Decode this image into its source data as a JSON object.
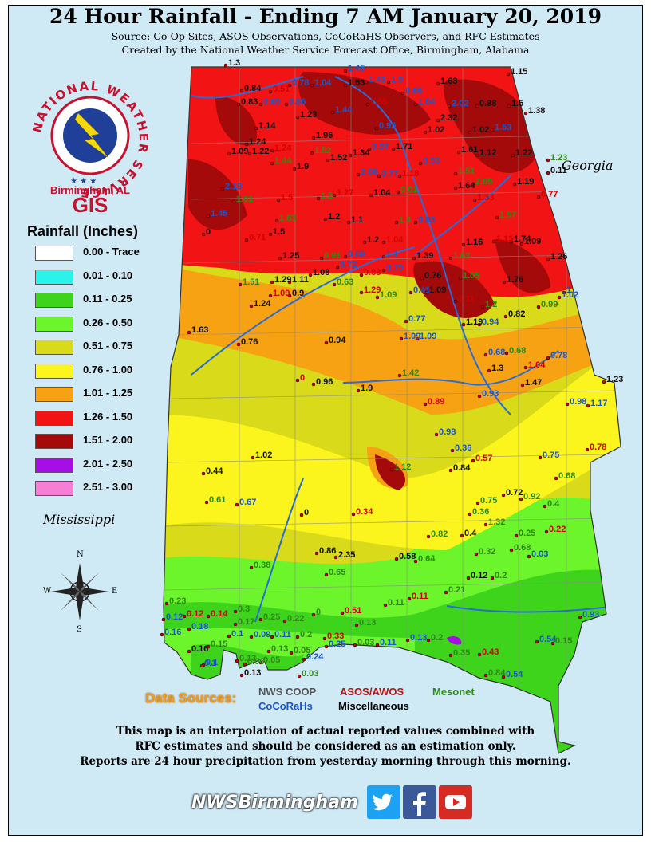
{
  "title": "24 Hour Rainfall - Ending 7 AM January 20, 2019",
  "subtitle1": "Source: Co-Op Sites, ASOS Observations, CoCoRaHS Observers, and RFC Estimates",
  "subtitle2": "Created by the National Weather Service Forecast Office, Birmingham, Alabama",
  "logo": {
    "ring_text": "NATIONAL WEATHER SERVICE",
    "office": "Birmingham, AL",
    "gis": "GIS"
  },
  "legend": {
    "title": "Rainfall (Inches)",
    "items": [
      {
        "label": "0.00 - Trace",
        "color": "#ffffff"
      },
      {
        "label": "0.01 - 0.10",
        "color": "#29f3ea"
      },
      {
        "label": "0.11 - 0.25",
        "color": "#3ed41c"
      },
      {
        "label": "0.26 - 0.50",
        "color": "#6cf52a"
      },
      {
        "label": "0.51 - 0.75",
        "color": "#d8da1a"
      },
      {
        "label": "0.76 - 1.00",
        "color": "#fbf51d"
      },
      {
        "label": "1.01 - 1.25",
        "color": "#f7a212"
      },
      {
        "label": "1.26 - 1.50",
        "color": "#f21414"
      },
      {
        "label": "1.51 - 2.00",
        "color": "#a40a0a"
      },
      {
        "label": "2.01 - 2.50",
        "color": "#a50ee6"
      },
      {
        "label": "2.51 - 3.00",
        "color": "#f77ed5"
      }
    ]
  },
  "labels": {
    "mississippi": "Mississippi",
    "georgia": "Georgia",
    "compass": {
      "n": "N",
      "s": "S",
      "e": "E",
      "w": "W"
    }
  },
  "sources": {
    "title": "Data Sources:",
    "nws_coop": "NWS COOP",
    "asos_awos": "ASOS/AWOS",
    "mesonet": "Mesonet",
    "cocorahs": "CoCoRaHs",
    "misc": "Miscellaneous"
  },
  "disclaimer": [
    "This map is an interpolation of actual reported values combined with",
    "RFC estimates and should be considered as an estimation only.",
    "Reports are 24 hour precipitation from yesterday morning through this morning."
  ],
  "footer": {
    "handle": "NWSBirmingham",
    "icons": [
      "twitter-icon",
      "facebook-icon",
      "youtube-icon"
    ]
  },
  "colors": {
    "water": "#cfe9f5",
    "coop": "#111111",
    "cocorahs": "#1a56c9",
    "asos": "#d40000",
    "mesonet": "#2d8a13"
  },
  "obs": [
    {
      "v": "1.3",
      "t": "coop"
    },
    {
      "v": "1.45",
      "t": "coco"
    },
    {
      "v": "1.15",
      "t": "coop"
    },
    {
      "v": "0.84",
      "t": "coop"
    },
    {
      "v": "0.51",
      "t": "asos"
    },
    {
      "v": "0.78",
      "t": "coco"
    },
    {
      "v": "1.04",
      "t": "coco"
    },
    {
      "v": "1.53",
      "t": "coop"
    },
    {
      "v": "1.43",
      "t": "coco"
    },
    {
      "v": "1.9",
      "t": "coco"
    },
    {
      "v": "1.63",
      "t": "coop"
    },
    {
      "v": "0.83",
      "t": "coop"
    },
    {
      "v": "0.69",
      "t": "coco"
    },
    {
      "v": "0.86",
      "t": "coco"
    },
    {
      "v": "1.23",
      "t": "coop"
    },
    {
      "v": "1.44",
      "t": "coco"
    },
    {
      "v": "1.55",
      "t": "asos"
    },
    {
      "v": "0.66",
      "t": "coco"
    },
    {
      "v": "1.04",
      "t": "coco"
    },
    {
      "v": "2.02",
      "t": "coco"
    },
    {
      "v": "0.88",
      "t": "coop"
    },
    {
      "v": "1.5",
      "t": "coop"
    },
    {
      "v": "1.38",
      "t": "coop"
    },
    {
      "v": "1.14",
      "t": "coop"
    },
    {
      "v": "0.95",
      "t": "coco"
    },
    {
      "v": "1.02",
      "t": "coop"
    },
    {
      "v": "2.32",
      "t": "coop"
    },
    {
      "v": "1.02",
      "t": "coop"
    },
    {
      "v": "1.53",
      "t": "coco"
    },
    {
      "v": "1.96",
      "t": "coop"
    },
    {
      "v": "1.24",
      "t": "coop"
    },
    {
      "v": "1.22",
      "t": "coop"
    },
    {
      "v": "1.09",
      "t": "coop"
    },
    {
      "v": "1.24",
      "t": "asos"
    },
    {
      "v": "1.52",
      "t": "meso"
    },
    {
      "v": "1.34",
      "t": "coop"
    },
    {
      "v": "0.97",
      "t": "coco"
    },
    {
      "v": "1.71",
      "t": "coop"
    },
    {
      "v": "1.61",
      "t": "coop"
    },
    {
      "v": "1.12",
      "t": "coop"
    },
    {
      "v": "1.22",
      "t": "coop"
    },
    {
      "v": "1.23",
      "t": "meso"
    },
    {
      "v": "1.44",
      "t": "meso"
    },
    {
      "v": "1.9",
      "t": "coop"
    },
    {
      "v": "1.52",
      "t": "coop"
    },
    {
      "v": "2.08",
      "t": "coco"
    },
    {
      "v": "0.77",
      "t": "coco"
    },
    {
      "v": "1.18",
      "t": "asos"
    },
    {
      "v": "0.93",
      "t": "coco"
    },
    {
      "v": "1.51",
      "t": "meso"
    },
    {
      "v": "0.11",
      "t": "coop"
    },
    {
      "v": "2.19",
      "t": "coco"
    },
    {
      "v": "1.01",
      "t": "meso"
    },
    {
      "v": "1.5",
      "t": "asos"
    },
    {
      "v": "1.2",
      "t": "meso"
    },
    {
      "v": "1.27",
      "t": "asos"
    },
    {
      "v": "1.04",
      "t": "coop"
    },
    {
      "v": "0.01",
      "t": "meso"
    },
    {
      "v": "1.64",
      "t": "coop"
    },
    {
      "v": "2.05",
      "t": "meso"
    },
    {
      "v": "1.19",
      "t": "coop"
    },
    {
      "v": "0.77",
      "t": "asos"
    },
    {
      "v": "1.45",
      "t": "coco"
    },
    {
      "v": "1.63",
      "t": "meso"
    },
    {
      "v": "1.2",
      "t": "coop"
    },
    {
      "v": "1.1",
      "t": "coop"
    },
    {
      "v": "1.4",
      "t": "meso"
    },
    {
      "v": "0.83",
      "t": "coco"
    },
    {
      "v": "1.33",
      "t": "asos"
    },
    {
      "v": "1.57",
      "t": "meso"
    },
    {
      "v": "0",
      "t": "coop"
    },
    {
      "v": "0.71",
      "t": "asos"
    },
    {
      "v": "1.5",
      "t": "coop"
    },
    {
      "v": "1.2",
      "t": "coop"
    },
    {
      "v": "1.04",
      "t": "asos"
    },
    {
      "v": "1.16",
      "t": "coop"
    },
    {
      "v": "1.15",
      "t": "asos"
    },
    {
      "v": "1.74",
      "t": "coop"
    },
    {
      "v": "1.09",
      "t": "coop"
    },
    {
      "v": "1.25",
      "t": "coop"
    },
    {
      "v": "0.91",
      "t": "meso"
    },
    {
      "v": "0.69",
      "t": "coco"
    },
    {
      "v": "1.1",
      "t": "coco"
    },
    {
      "v": "1.39",
      "t": "coop"
    },
    {
      "v": "1.02",
      "t": "meso"
    },
    {
      "v": "1.26",
      "t": "coop"
    },
    {
      "v": "0.72",
      "t": "coco"
    },
    {
      "v": "0.79",
      "t": "coco"
    },
    {
      "v": "1.08",
      "t": "coop"
    },
    {
      "v": "0.88",
      "t": "asos"
    },
    {
      "v": "0.76",
      "t": "coop"
    },
    {
      "v": "1.05",
      "t": "meso"
    },
    {
      "v": "1.29",
      "t": "coop"
    },
    {
      "v": "1.11",
      "t": "coop"
    },
    {
      "v": "0.63",
      "t": "meso"
    },
    {
      "v": "1.51",
      "t": "meso"
    },
    {
      "v": "1.09",
      "t": "asos"
    },
    {
      "v": "0.9",
      "t": "coop"
    },
    {
      "v": "1.29",
      "t": "asos"
    },
    {
      "v": "1.09",
      "t": "meso"
    },
    {
      "v": "0.41",
      "t": "coco"
    },
    {
      "v": "1.09",
      "t": "coop"
    },
    {
      "v": "1.76",
      "t": "coop"
    },
    {
      "v": "1",
      "t": "coco"
    },
    {
      "v": "1.24",
      "t": "coop"
    },
    {
      "v": "1.11",
      "t": "asos"
    },
    {
      "v": "1.2",
      "t": "meso"
    },
    {
      "v": "0.99",
      "t": "meso"
    },
    {
      "v": "1.02",
      "t": "coco"
    },
    {
      "v": "0.77",
      "t": "coco"
    },
    {
      "v": "1.19",
      "t": "coop"
    },
    {
      "v": "0.94",
      "t": "coco"
    },
    {
      "v": "0.82",
      "t": "coop"
    },
    {
      "v": "1.63",
      "t": "coop"
    },
    {
      "v": "0.76",
      "t": "coop"
    },
    {
      "v": "0.94",
      "t": "coop"
    },
    {
      "v": "1.09",
      "t": "coco"
    },
    {
      "v": "1.09",
      "t": "coco"
    },
    {
      "v": "0.68",
      "t": "coco"
    },
    {
      "v": "0.68",
      "t": "meso"
    },
    {
      "v": "0.78",
      "t": "coco"
    },
    {
      "v": "1.3",
      "t": "coop"
    },
    {
      "v": "1.04",
      "t": "asos"
    },
    {
      "v": "1.42",
      "t": "meso"
    },
    {
      "v": "1.47",
      "t": "coop"
    },
    {
      "v": "0.93",
      "t": "coco"
    },
    {
      "v": "1.23",
      "t": "coop"
    },
    {
      "v": "0",
      "t": "asos"
    },
    {
      "v": "0.96",
      "t": "coop"
    },
    {
      "v": "1.9",
      "t": "coop"
    },
    {
      "v": "0.89",
      "t": "asos"
    },
    {
      "v": "0.98",
      "t": "coco"
    },
    {
      "v": "1.17",
      "t": "coco"
    },
    {
      "v": "0.98",
      "t": "coco"
    },
    {
      "v": "0.36",
      "t": "coco"
    },
    {
      "v": "0.57",
      "t": "asos"
    },
    {
      "v": "0.78",
      "t": "asos"
    },
    {
      "v": "1.02",
      "t": "coop"
    },
    {
      "v": "0.84",
      "t": "coop"
    },
    {
      "v": "0.75",
      "t": "coco"
    },
    {
      "v": "1.12",
      "t": "meso"
    },
    {
      "v": "0.44",
      "t": "coop"
    },
    {
      "v": "0.68",
      "t": "meso"
    },
    {
      "v": "0.61",
      "t": "meso"
    },
    {
      "v": "0.67",
      "t": "coco"
    },
    {
      "v": "0.34",
      "t": "asos"
    },
    {
      "v": "0.72",
      "t": "coop"
    },
    {
      "v": "0.75",
      "t": "meso"
    },
    {
      "v": "0.92",
      "t": "meso"
    },
    {
      "v": "0.4",
      "t": "meso"
    },
    {
      "v": "0",
      "t": "coop"
    },
    {
      "v": "0.36",
      "t": "meso"
    },
    {
      "v": "1.32",
      "t": "meso"
    },
    {
      "v": "0.22",
      "t": "asos"
    },
    {
      "v": "0.82",
      "t": "meso"
    },
    {
      "v": "0.4",
      "t": "coop"
    },
    {
      "v": "0.25",
      "t": "meso"
    },
    {
      "v": "0.32",
      "t": "meso"
    },
    {
      "v": "0.68",
      "t": "meso"
    },
    {
      "v": "0.86",
      "t": "coop"
    },
    {
      "v": "2.35",
      "t": "coop"
    },
    {
      "v": "0.58",
      "t": "coop"
    },
    {
      "v": "0.64",
      "t": "meso"
    },
    {
      "v": "0.03",
      "t": "coco"
    },
    {
      "v": "0.38",
      "t": "meso"
    },
    {
      "v": "0.65",
      "t": "meso"
    },
    {
      "v": "0.12",
      "t": "coop"
    },
    {
      "v": "0.2",
      "t": "meso"
    },
    {
      "v": "0.21",
      "t": "meso"
    },
    {
      "v": "0.23",
      "t": "meso"
    },
    {
      "v": "0.11",
      "t": "asos"
    },
    {
      "v": "0.11",
      "t": "meso"
    },
    {
      "v": "0.93",
      "t": "coco"
    },
    {
      "v": "0.12",
      "t": "coco"
    },
    {
      "v": "0.12",
      "t": "asos"
    },
    {
      "v": "0.14",
      "t": "asos"
    },
    {
      "v": "0.3",
      "t": "meso"
    },
    {
      "v": "0.25",
      "t": "meso"
    },
    {
      "v": "0.22",
      "t": "meso"
    },
    {
      "v": "0",
      "t": "meso"
    },
    {
      "v": "0.51",
      "t": "asos"
    },
    {
      "v": "0.13",
      "t": "meso"
    },
    {
      "v": "0.16",
      "t": "coco"
    },
    {
      "v": "0.18",
      "t": "coco"
    },
    {
      "v": "0.17",
      "t": "meso"
    },
    {
      "v": "0.15",
      "t": "meso"
    },
    {
      "v": "0.1",
      "t": "coco"
    },
    {
      "v": "0.33",
      "t": "asos"
    },
    {
      "v": "0.1",
      "t": "coco"
    },
    {
      "v": "0.09",
      "t": "coco"
    },
    {
      "v": "0.11",
      "t": "coco"
    },
    {
      "v": "0.2",
      "t": "meso"
    },
    {
      "v": "0.54",
      "t": "coco"
    },
    {
      "v": "0.15",
      "t": "meso"
    },
    {
      "v": "0.13",
      "t": "meso"
    },
    {
      "v": "0.05",
      "t": "meso"
    },
    {
      "v": "0.24",
      "t": "coco"
    },
    {
      "v": "0.25",
      "t": "coco"
    },
    {
      "v": "0.03",
      "t": "meso"
    },
    {
      "v": "0.11",
      "t": "coco"
    },
    {
      "v": "0.13",
      "t": "coco"
    },
    {
      "v": "0.2",
      "t": "meso"
    },
    {
      "v": "0.35",
      "t": "meso"
    },
    {
      "v": "0.43",
      "t": "asos"
    },
    {
      "v": "0.16",
      "t": "coop"
    },
    {
      "v": "0.13",
      "t": "meso"
    },
    {
      "v": "0.1",
      "t": "coco"
    },
    {
      "v": "0.06",
      "t": "meso"
    },
    {
      "v": "0.05",
      "t": "meso"
    },
    {
      "v": "0.13",
      "t": "coop"
    },
    {
      "v": "0.03",
      "t": "meso"
    },
    {
      "v": "0.84",
      "t": "meso"
    },
    {
      "v": "0.54",
      "t": "coco"
    }
  ]
}
